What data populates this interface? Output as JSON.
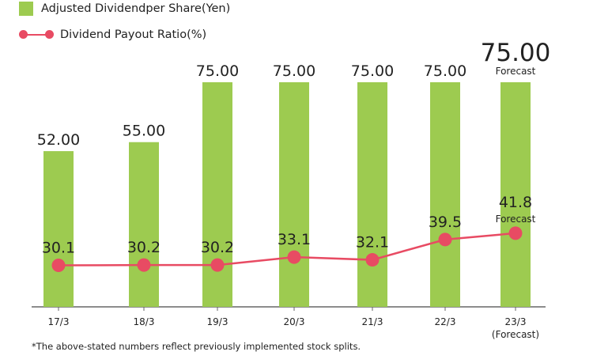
{
  "legend": {
    "bar_label": "Adjusted Dividendper Share(Yen)",
    "line_label": "Dividend Payout Ratio(%)"
  },
  "footnote": "*The above-stated numbers reflect previously implemented stock splits.",
  "colors": {
    "bar": "#9dcb50",
    "line": "#e84b63",
    "axis": "#666666",
    "text": "#222222"
  },
  "chart_data": {
    "type": "bar",
    "categories": [
      "17/3",
      "18/3",
      "19/3",
      "20/3",
      "21/3",
      "22/3",
      "23/3"
    ],
    "category_sublabels": [
      "",
      "",
      "",
      "",
      "",
      "",
      "(Forecast)"
    ],
    "series": [
      {
        "name": "Adjusted Dividendper Share(Yen)",
        "type": "bar",
        "values": [
          52.0,
          55.0,
          75.0,
          75.0,
          75.0,
          75.0,
          75.0
        ],
        "labels": [
          "52.00",
          "55.00",
          "75.00",
          "75.00",
          "75.00",
          "75.00",
          "75.00"
        ],
        "annotations": [
          "",
          "",
          "",
          "",
          "",
          "",
          "Forecast"
        ]
      },
      {
        "name": "Dividend Payout Ratio(%)",
        "type": "line",
        "values": [
          30.1,
          30.2,
          30.2,
          33.1,
          32.1,
          39.5,
          41.8
        ],
        "labels": [
          "30.1",
          "30.2",
          "30.2",
          "33.1",
          "32.1",
          "39.5",
          "41.8"
        ],
        "annotations": [
          "",
          "",
          "",
          "",
          "",
          "",
          "Forecast"
        ]
      }
    ],
    "ylim_bar": [
      0,
      80
    ],
    "legend_position": "top-left"
  }
}
